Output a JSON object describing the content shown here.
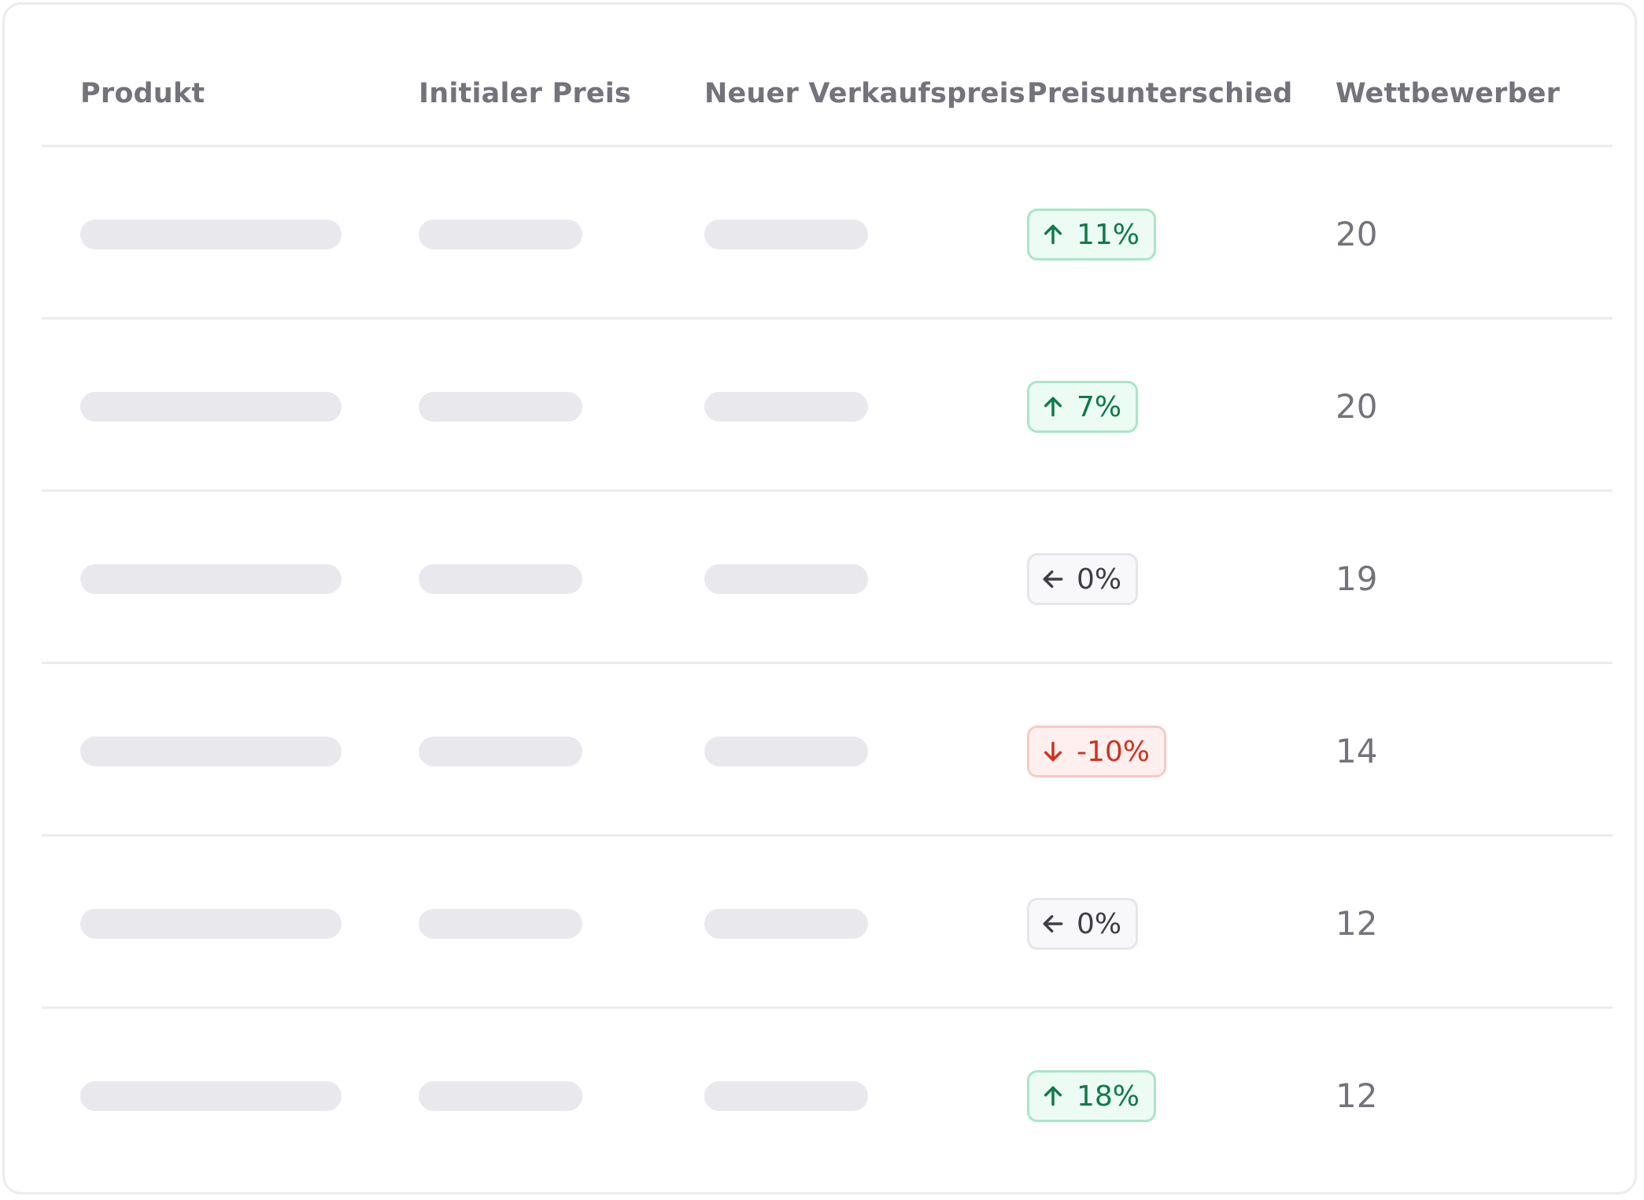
{
  "table": {
    "headers": {
      "product": "Produkt",
      "initial_price": "Initialer Preis",
      "new_price": "Neuer Verkaufspreis",
      "price_diff": "Preisunterschied",
      "competitors": "Wettbewerber"
    },
    "rows": [
      {
        "price_diff": "11%",
        "trend": "up",
        "competitors": "20"
      },
      {
        "price_diff": "7%",
        "trend": "up",
        "competitors": "20"
      },
      {
        "price_diff": "0%",
        "trend": "neutral",
        "competitors": "19"
      },
      {
        "price_diff": "-10%",
        "trend": "down",
        "competitors": "14"
      },
      {
        "price_diff": "0%",
        "trend": "neutral",
        "competitors": "12"
      },
      {
        "price_diff": "18%",
        "trend": "up",
        "competitors": "12"
      }
    ]
  },
  "icons": {
    "up": "arrow-up-icon",
    "down": "arrow-down-icon",
    "neutral": "arrow-left-icon"
  },
  "colors": {
    "up_text": "#0e7a4a",
    "up_bg": "#ecfbf4",
    "down_text": "#d0321f",
    "down_bg": "#fff0ef",
    "neutral_text": "#3f3e45",
    "neutral_bg": "#f8f7fa",
    "header_text": "#74737b",
    "placeholder": "#e9e9ed",
    "divider": "#ececee"
  }
}
